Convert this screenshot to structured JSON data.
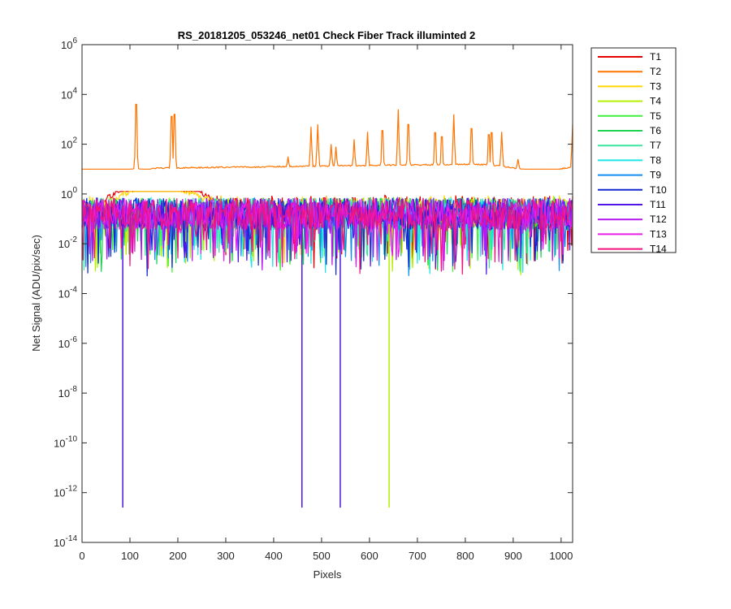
{
  "chart_data": {
    "type": "line",
    "title": "RS_20181205_053246_net01   Check Fiber     Track illuminted 2",
    "xlabel": "Pixels",
    "ylabel": "Net Signal (ADU/pix/sec)",
    "xlim": [
      0,
      1024
    ],
    "ylim_log10": [
      -14,
      6
    ],
    "yscale": "log",
    "x_ticks": [
      0,
      100,
      200,
      300,
      400,
      500,
      600,
      700,
      800,
      900,
      1000
    ],
    "x_tick_labels": [
      "0",
      "100",
      "200",
      "300",
      "400",
      "500",
      "600",
      "700",
      "800",
      "900",
      "1000"
    ],
    "y_ticks_log10": [
      6,
      4,
      2,
      0,
      -2,
      -4,
      -6,
      -8,
      -10,
      -12,
      -14
    ],
    "y_tick_labels": [
      {
        "base": "10",
        "exp": "6"
      },
      {
        "base": "10",
        "exp": "4"
      },
      {
        "base": "10",
        "exp": "2"
      },
      {
        "base": "10",
        "exp": "0"
      },
      {
        "base": "10",
        "exp": "-2"
      },
      {
        "base": "10",
        "exp": "-4"
      },
      {
        "base": "10",
        "exp": "-6"
      },
      {
        "base": "10",
        "exp": "-8"
      },
      {
        "base": "10",
        "exp": "-10"
      },
      {
        "base": "10",
        "exp": "-12"
      },
      {
        "base": "10",
        "exp": "-14"
      }
    ],
    "legend_position": "outside-top-right",
    "series": [
      {
        "name": "T1",
        "color": "#e60000",
        "baseline_log10": -0.7,
        "hump_log10": 1.0
      },
      {
        "name": "T2",
        "color": "#ff7300",
        "baseline_log10": 1.0,
        "illuminated": true,
        "peaks": [
          {
            "x": 113,
            "log10": 4.2
          },
          {
            "x": 187,
            "log10": 3.6
          },
          {
            "x": 193,
            "log10": 3.7
          },
          {
            "x": 430,
            "log10": 1.5
          },
          {
            "x": 478,
            "log10": 2.7
          },
          {
            "x": 492,
            "log10": 2.8
          },
          {
            "x": 520,
            "log10": 2.0
          },
          {
            "x": 530,
            "log10": 1.9
          },
          {
            "x": 568,
            "log10": 2.2
          },
          {
            "x": 596,
            "log10": 2.5
          },
          {
            "x": 627,
            "log10": 2.9
          },
          {
            "x": 660,
            "log10": 3.4
          },
          {
            "x": 681,
            "log10": 3.2
          },
          {
            "x": 737,
            "log10": 2.8
          },
          {
            "x": 751,
            "log10": 2.6
          },
          {
            "x": 776,
            "log10": 3.2
          },
          {
            "x": 813,
            "log10": 3.0
          },
          {
            "x": 849,
            "log10": 2.7
          },
          {
            "x": 855,
            "log10": 2.8
          },
          {
            "x": 876,
            "log10": 2.5
          },
          {
            "x": 910,
            "log10": 1.4
          },
          {
            "x": 937,
            "log10": 0.8
          },
          {
            "x": 1024,
            "log10": 2.8
          }
        ]
      },
      {
        "name": "T3",
        "color": "#ffd700",
        "baseline_log10": -0.7,
        "hump_log10": 0.5
      },
      {
        "name": "T4",
        "color": "#b4f000",
        "baseline_log10": -0.8,
        "dips": [
          {
            "x": 641,
            "log10": -12.6
          }
        ]
      },
      {
        "name": "T5",
        "color": "#3cf03c",
        "baseline_log10": -0.8
      },
      {
        "name": "T6",
        "color": "#1ed250",
        "baseline_log10": -0.8
      },
      {
        "name": "T7",
        "color": "#3ce6a0",
        "baseline_log10": -0.8
      },
      {
        "name": "T8",
        "color": "#1ee6e6",
        "baseline_log10": -0.8
      },
      {
        "name": "T9",
        "color": "#148cf0",
        "baseline_log10": -0.8
      },
      {
        "name": "T10",
        "color": "#1428d2",
        "baseline_log10": -0.8
      },
      {
        "name": "T11",
        "color": "#5014e6",
        "baseline_log10": -0.8,
        "dips": [
          {
            "x": 85,
            "log10": -12.6
          },
          {
            "x": 459,
            "log10": -12.6
          },
          {
            "x": 539,
            "log10": -12.6
          }
        ]
      },
      {
        "name": "T12",
        "color": "#b414f0",
        "baseline_log10": -0.8
      },
      {
        "name": "T13",
        "color": "#e61ee6",
        "baseline_log10": -0.8
      },
      {
        "name": "T14",
        "color": "#f0147d",
        "baseline_log10": -0.8
      }
    ]
  }
}
